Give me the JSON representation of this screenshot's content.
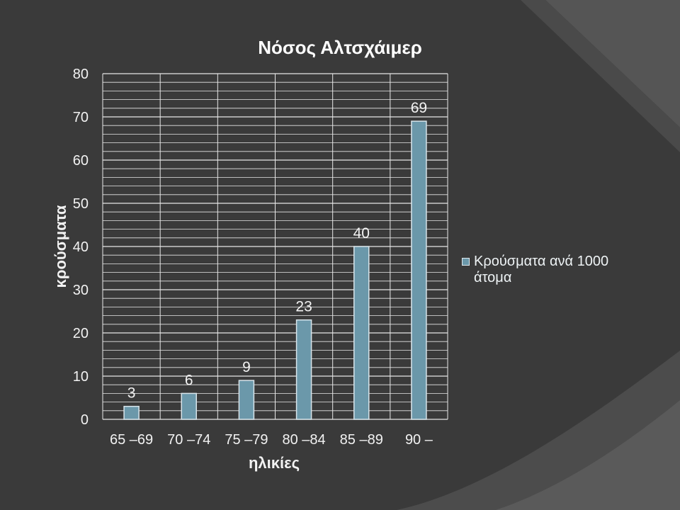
{
  "chart_data": {
    "type": "bar",
    "title": "Νόσος Αλτσχάιμερ",
    "xlabel": "ηλικίες",
    "ylabel": "κρούσματα",
    "categories": [
      "65 –69",
      "70 –74",
      "75 –79",
      "80 –84",
      "85 –89",
      "90 –"
    ],
    "series": [
      {
        "name": "Κρούσματα ανά 1000 άτομα",
        "values": [
          3,
          6,
          9,
          23,
          40,
          69
        ]
      }
    ],
    "ylim": [
      0,
      80
    ],
    "yticks": [
      "0",
      "10",
      "20",
      "30",
      "40",
      "50",
      "60",
      "70",
      "80"
    ],
    "data_labels": [
      "3",
      "6",
      "9",
      "23",
      "40",
      "69"
    ],
    "grid": true,
    "legend_position": "right",
    "colors": {
      "bar": "#6b98aa",
      "bar_border": "#d8e4ea",
      "grid": "#e8e8e8",
      "text": "#f2f2f2",
      "title": "#ffffff",
      "background": "#333333"
    }
  }
}
